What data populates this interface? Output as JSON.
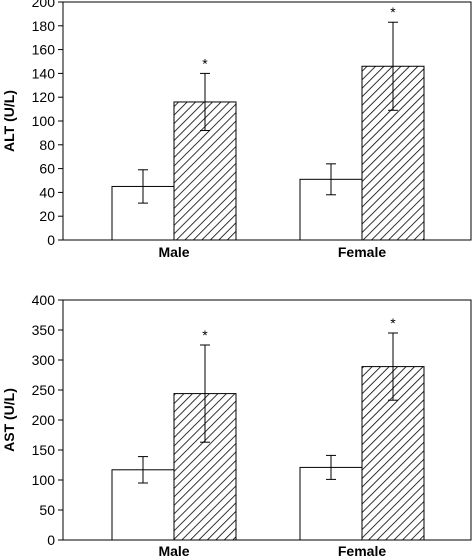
{
  "chart_data": [
    {
      "type": "bar",
      "ylabel": "ALT (U/L)",
      "xlabel": "",
      "ylim": [
        0,
        200
      ],
      "yticks": [
        0,
        20,
        40,
        60,
        80,
        100,
        120,
        140,
        160,
        180,
        200
      ],
      "categories": [
        "Male",
        "Female"
      ],
      "series": [
        {
          "fill": "white",
          "values": [
            45,
            51
          ],
          "errors": [
            14,
            13
          ],
          "annotations": [
            "",
            ""
          ]
        },
        {
          "fill": "hatched",
          "values": [
            116,
            146
          ],
          "errors": [
            24,
            37
          ],
          "annotations": [
            "*",
            "*"
          ]
        }
      ]
    },
    {
      "type": "bar",
      "ylabel": "AST (U/L)",
      "xlabel": "",
      "ylim": [
        0,
        400
      ],
      "yticks": [
        0,
        50,
        100,
        150,
        200,
        250,
        300,
        350,
        400
      ],
      "categories": [
        "Male",
        "Female"
      ],
      "series": [
        {
          "fill": "white",
          "values": [
            117,
            121
          ],
          "errors": [
            22,
            20
          ],
          "annotations": [
            "",
            ""
          ]
        },
        {
          "fill": "hatched",
          "values": [
            244,
            289
          ],
          "errors": [
            81,
            56
          ],
          "annotations": [
            "*",
            "*"
          ]
        }
      ]
    }
  ]
}
